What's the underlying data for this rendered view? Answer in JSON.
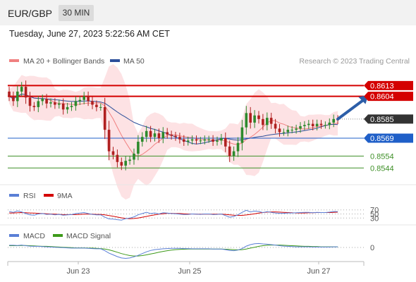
{
  "header": {
    "symbol": "EUR/GBP",
    "timeframe": "30 MIN",
    "datetime": "Tuesday, June 27, 2023 5:22:56 AM CET"
  },
  "legend": {
    "ma20": "MA 20 + Bollinger Bands",
    "ma50": "MA 50",
    "credit": "Research © 2023 Trading Central"
  },
  "colors": {
    "resistance": "#d40000",
    "pivot": "#1f5fc8",
    "support": "#3d8f26",
    "ma20": "#f08080",
    "ma50": "#2c4f9a",
    "band": "#fde2e4",
    "candle_up": "#2d8a2d",
    "candle_down": "#b02020",
    "rsi": "#5a7fd6",
    "rsi_ma": "#d40000",
    "macd": "#5a7fd6",
    "macd_signal": "#3d9a1a",
    "current_tag": "#333333",
    "arrow": "#2c5ea8"
  },
  "chart_data": {
    "type": "candlestick",
    "y_unit": "EUR/GBP",
    "x_labels": [
      "Jun 23",
      "Jun 25",
      "Jun 27"
    ],
    "levels": [
      {
        "label": "0.8613",
        "value": 0.8613,
        "kind": "resistance"
      },
      {
        "label": "0.8604",
        "value": 0.8604,
        "kind": "resistance"
      },
      {
        "label": "0.8569",
        "value": 0.8569,
        "kind": "pivot"
      },
      {
        "label": "0.8554",
        "value": 0.8554,
        "kind": "support"
      },
      {
        "label": "0.8544",
        "value": 0.8544,
        "kind": "support"
      }
    ],
    "current_price": {
      "label": "0.8585",
      "value": 0.8585
    },
    "close": [
      0.8604,
      0.86,
      0.8608,
      0.8612,
      0.8603,
      0.8596,
      0.8595,
      0.86,
      0.8602,
      0.8598,
      0.8599,
      0.8597,
      0.8598,
      0.8593,
      0.8595,
      0.8596,
      0.86,
      0.8601,
      0.8604,
      0.86,
      0.8597,
      0.8595,
      0.8595,
      0.8576,
      0.8558,
      0.8555,
      0.8549,
      0.8546,
      0.855,
      0.8551,
      0.8556,
      0.8566,
      0.857,
      0.8575,
      0.857,
      0.8573,
      0.8569,
      0.8574,
      0.8572,
      0.8571,
      0.857,
      0.8568,
      0.8566,
      0.8567,
      0.8568,
      0.8567,
      0.8567,
      0.8568,
      0.8568,
      0.8566,
      0.8567,
      0.8569,
      0.8562,
      0.8554,
      0.8558,
      0.8565,
      0.8578,
      0.859,
      0.8582,
      0.8588,
      0.8585,
      0.858,
      0.8586,
      0.8581,
      0.8577,
      0.8574,
      0.8574,
      0.8576,
      0.8576,
      0.8577,
      0.8579,
      0.858,
      0.8581,
      0.8579,
      0.8581,
      0.858,
      0.858,
      0.8582,
      0.8585,
      0.8584
    ],
    "arrow": {
      "from": {
        "index": 79,
        "value": 0.8585
      },
      "to": {
        "index": 86,
        "value": 0.8604
      }
    },
    "rsi": {
      "title": "RSI",
      "ma_label": "9MA",
      "ticks": [
        "70",
        "50",
        "30"
      ],
      "ylim": [
        0,
        100
      ],
      "values": [
        62,
        58,
        65,
        60,
        52,
        46,
        44,
        50,
        52,
        48,
        49,
        46,
        48,
        44,
        46,
        47,
        52,
        54,
        57,
        52,
        48,
        46,
        46,
        34,
        26,
        25,
        22,
        20,
        27,
        30,
        36,
        46,
        52,
        58,
        52,
        55,
        50,
        56,
        54,
        52,
        51,
        49,
        47,
        48,
        50,
        49,
        48,
        50,
        50,
        47,
        48,
        50,
        42,
        34,
        38,
        46,
        58,
        68,
        60,
        64,
        62,
        57,
        61,
        58,
        55,
        53,
        53,
        55,
        55,
        56,
        57,
        58,
        58,
        56,
        58,
        57,
        57,
        59,
        62,
        61
      ],
      "ma_values": [
        55,
        55,
        56,
        57,
        56,
        55,
        54,
        53,
        52,
        51,
        50,
        49,
        48,
        47,
        47,
        47,
        47,
        48,
        49,
        49,
        49,
        48,
        48,
        46,
        42,
        39,
        35,
        31,
        28,
        27,
        28,
        30,
        34,
        38,
        42,
        46,
        49,
        51,
        53,
        53,
        52,
        52,
        51,
        50,
        50,
        49,
        49,
        49,
        49,
        49,
        49,
        49,
        48,
        46,
        44,
        43,
        43,
        45,
        48,
        51,
        54,
        57,
        59,
        60,
        60,
        59,
        58,
        57,
        56,
        55,
        55,
        55,
        56,
        56,
        57,
        57,
        57,
        57,
        58,
        59
      ]
    },
    "macd": {
      "title": "MACD",
      "signal_label": "MACD Signal",
      "ticks": [
        "0"
      ],
      "values": [
        1.0,
        1.0,
        0.9,
        1.1,
        0.8,
        0.6,
        0.5,
        0.5,
        0.4,
        0.3,
        0.2,
        0.1,
        0.0,
        -0.1,
        -0.2,
        -0.3,
        -0.3,
        -0.3,
        -0.3,
        -0.4,
        -0.5,
        -0.6,
        -0.6,
        -1.5,
        -2.6,
        -3.4,
        -4.2,
        -4.8,
        -5.0,
        -4.8,
        -4.3,
        -3.6,
        -2.8,
        -2.0,
        -1.4,
        -1.0,
        -0.8,
        -0.6,
        -0.5,
        -0.4,
        -0.4,
        -0.4,
        -0.5,
        -0.5,
        -0.6,
        -0.6,
        -0.6,
        -0.6,
        -0.6,
        -0.7,
        -0.7,
        -0.7,
        -1.0,
        -1.4,
        -1.5,
        -1.2,
        -0.5,
        0.6,
        1.3,
        1.7,
        1.8,
        1.6,
        1.5,
        1.3,
        1.1,
        0.8,
        0.6,
        0.5,
        0.4,
        0.3,
        0.3,
        0.3,
        0.3,
        0.2,
        0.2,
        0.2,
        0.2,
        0.2,
        0.3,
        0.3
      ],
      "signal_values": [
        0.8,
        0.8,
        0.8,
        0.9,
        0.9,
        0.8,
        0.7,
        0.6,
        0.5,
        0.5,
        0.4,
        0.3,
        0.2,
        0.1,
        0.0,
        -0.1,
        -0.2,
        -0.2,
        -0.2,
        -0.3,
        -0.3,
        -0.4,
        -0.5,
        -0.7,
        -1.1,
        -1.6,
        -2.2,
        -2.8,
        -3.3,
        -3.7,
        -3.9,
        -3.9,
        -3.7,
        -3.4,
        -3.0,
        -2.6,
        -2.2,
        -1.8,
        -1.5,
        -1.2,
        -1.0,
        -0.9,
        -0.8,
        -0.7,
        -0.7,
        -0.7,
        -0.7,
        -0.7,
        -0.7,
        -0.7,
        -0.7,
        -0.7,
        -0.8,
        -0.9,
        -1.0,
        -1.1,
        -1.0,
        -0.7,
        -0.3,
        0.1,
        0.5,
        0.8,
        1.0,
        1.1,
        1.1,
        1.1,
        1.0,
        0.9,
        0.8,
        0.7,
        0.6,
        0.5,
        0.5,
        0.4,
        0.4,
        0.3,
        0.3,
        0.3,
        0.3,
        0.3
      ]
    }
  }
}
